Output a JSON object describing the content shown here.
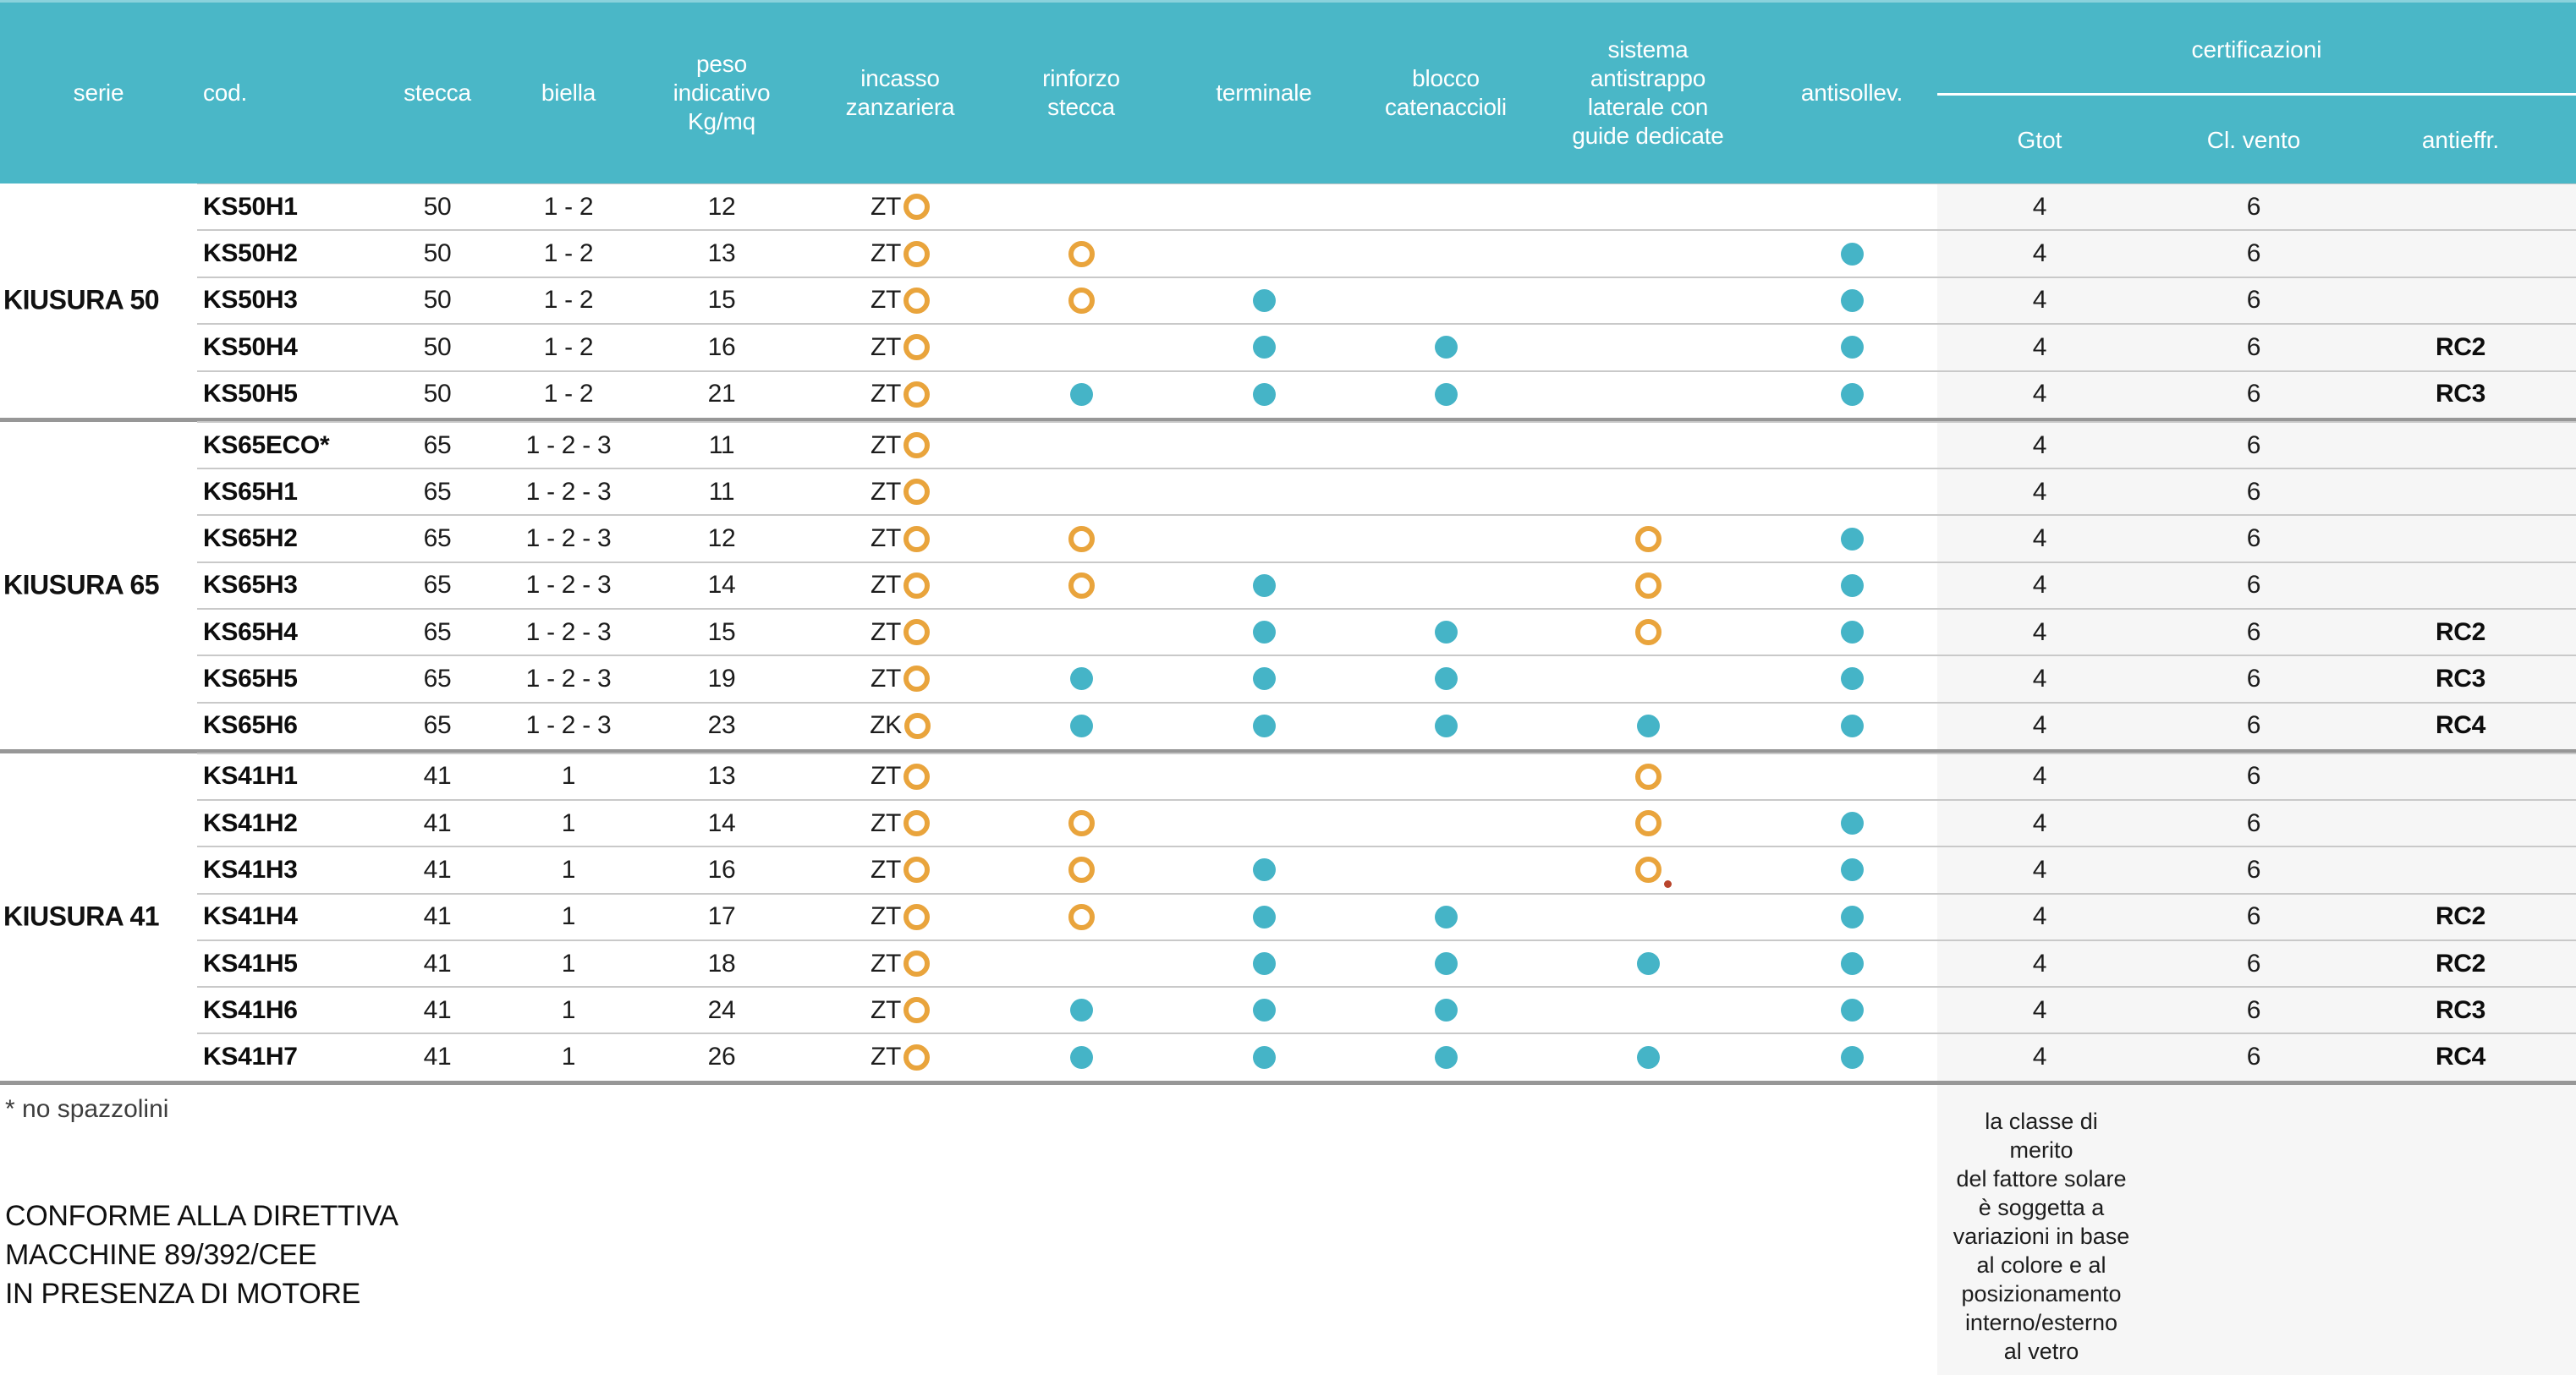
{
  "table": {
    "columns": [
      {
        "label": "serie"
      },
      {
        "label": "cod."
      },
      {
        "label": "stecca"
      },
      {
        "label": "biella"
      },
      {
        "label": "peso\nindicativo\nKg/mq"
      },
      {
        "label": "incasso\nzanzariera"
      },
      {
        "label": "rinforzo\nstecca"
      },
      {
        "label": "terminale"
      },
      {
        "label": "blocco\ncatenaccioli"
      },
      {
        "label": "sistema\nantistrappo\nlaterale con\nguide dedicate"
      },
      {
        "label": "antisollev."
      }
    ],
    "cert": {
      "label": "certificazioni",
      "sub": [
        "Gtot",
        "Cl. vento",
        "antieffr."
      ]
    },
    "groups": [
      {
        "serie": "KIUSURA 50",
        "rows": [
          {
            "cod": "KS50H1",
            "stecca": "50",
            "biella": "1 - 2",
            "peso": "12",
            "incasso": "ZT",
            "rinforzo": "",
            "terminale": "",
            "blocco": "",
            "antistrappo": "",
            "antisollev": "",
            "gtot": "4",
            "vento": "6",
            "antieffr": ""
          },
          {
            "cod": "KS50H2",
            "stecca": "50",
            "biella": "1 - 2",
            "peso": "13",
            "incasso": "ZT",
            "rinforzo": "ring",
            "terminale": "",
            "blocco": "",
            "antistrappo": "",
            "antisollev": "dot",
            "gtot": "4",
            "vento": "6",
            "antieffr": ""
          },
          {
            "cod": "KS50H3",
            "stecca": "50",
            "biella": "1 - 2",
            "peso": "15",
            "incasso": "ZT",
            "rinforzo": "ring",
            "terminale": "dot",
            "blocco": "",
            "antistrappo": "",
            "antisollev": "dot",
            "gtot": "4",
            "vento": "6",
            "antieffr": ""
          },
          {
            "cod": "KS50H4",
            "stecca": "50",
            "biella": "1 - 2",
            "peso": "16",
            "incasso": "ZT",
            "rinforzo": "",
            "terminale": "dot",
            "blocco": "dot",
            "antistrappo": "",
            "antisollev": "dot",
            "gtot": "4",
            "vento": "6",
            "antieffr": "RC2"
          },
          {
            "cod": "KS50H5",
            "stecca": "50",
            "biella": "1 - 2",
            "peso": "21",
            "incasso": "ZT",
            "rinforzo": "dot",
            "terminale": "dot",
            "blocco": "dot",
            "antistrappo": "",
            "antisollev": "dot",
            "gtot": "4",
            "vento": "6",
            "antieffr": "RC3"
          }
        ]
      },
      {
        "serie": "KIUSURA 65",
        "rows": [
          {
            "cod": "KS65ECO*",
            "stecca": "65",
            "biella": "1 - 2 - 3",
            "peso": "11",
            "incasso": "ZT",
            "rinforzo": "",
            "terminale": "",
            "blocco": "",
            "antistrappo": "",
            "antisollev": "",
            "gtot": "4",
            "vento": "6",
            "antieffr": ""
          },
          {
            "cod": "KS65H1",
            "stecca": "65",
            "biella": "1 - 2 - 3",
            "peso": "11",
            "incasso": "ZT",
            "rinforzo": "",
            "terminale": "",
            "blocco": "",
            "antistrappo": "",
            "antisollev": "",
            "gtot": "4",
            "vento": "6",
            "antieffr": ""
          },
          {
            "cod": "KS65H2",
            "stecca": "65",
            "biella": "1 - 2 - 3",
            "peso": "12",
            "incasso": "ZT",
            "rinforzo": "ring",
            "terminale": "",
            "blocco": "",
            "antistrappo": "ring",
            "antisollev": "dot",
            "gtot": "4",
            "vento": "6",
            "antieffr": ""
          },
          {
            "cod": "KS65H3",
            "stecca": "65",
            "biella": "1 - 2 - 3",
            "peso": "14",
            "incasso": "ZT",
            "rinforzo": "ring",
            "terminale": "dot",
            "blocco": "",
            "antistrappo": "ring",
            "antisollev": "dot",
            "gtot": "4",
            "vento": "6",
            "antieffr": ""
          },
          {
            "cod": "KS65H4",
            "stecca": "65",
            "biella": "1 - 2 - 3",
            "peso": "15",
            "incasso": "ZT",
            "rinforzo": "",
            "terminale": "dot",
            "blocco": "dot",
            "antistrappo": "ring",
            "antisollev": "dot",
            "gtot": "4",
            "vento": "6",
            "antieffr": "RC2"
          },
          {
            "cod": "KS65H5",
            "stecca": "65",
            "biella": "1 - 2 - 3",
            "peso": "19",
            "incasso": "ZT",
            "rinforzo": "dot",
            "terminale": "dot",
            "blocco": "dot",
            "antistrappo": "",
            "antisollev": "dot",
            "gtot": "4",
            "vento": "6",
            "antieffr": "RC3"
          },
          {
            "cod": "KS65H6",
            "stecca": "65",
            "biella": "1 - 2 - 3",
            "peso": "23",
            "incasso": "ZK",
            "rinforzo": "dot",
            "terminale": "dot",
            "blocco": "dot",
            "antistrappo": "dot",
            "antisollev": "dot",
            "gtot": "4",
            "vento": "6",
            "antieffr": "RC4"
          }
        ]
      },
      {
        "serie": "KIUSURA 41",
        "rows": [
          {
            "cod": "KS41H1",
            "stecca": "41",
            "biella": "1",
            "peso": "13",
            "incasso": "ZT",
            "rinforzo": "",
            "terminale": "",
            "blocco": "",
            "antistrappo": "ring",
            "antisollev": "",
            "gtot": "4",
            "vento": "6",
            "antieffr": ""
          },
          {
            "cod": "KS41H2",
            "stecca": "41",
            "biella": "1",
            "peso": "14",
            "incasso": "ZT",
            "rinforzo": "ring",
            "terminale": "",
            "blocco": "",
            "antistrappo": "ring",
            "antisollev": "dot",
            "gtot": "4",
            "vento": "6",
            "antieffr": ""
          },
          {
            "cod": "KS41H3",
            "stecca": "41",
            "biella": "1",
            "peso": "16",
            "incasso": "ZT",
            "rinforzo": "ring",
            "terminale": "dot",
            "blocco": "",
            "antistrappo": "ring-dot",
            "antisollev": "dot",
            "gtot": "4",
            "vento": "6",
            "antieffr": ""
          },
          {
            "cod": "KS41H4",
            "stecca": "41",
            "biella": "1",
            "peso": "17",
            "incasso": "ZT",
            "rinforzo": "ring",
            "terminale": "dot",
            "blocco": "dot",
            "antistrappo": "",
            "antisollev": "dot",
            "gtot": "4",
            "vento": "6",
            "antieffr": "RC2"
          },
          {
            "cod": "KS41H5",
            "stecca": "41",
            "biella": "1",
            "peso": "18",
            "incasso": "ZT",
            "rinforzo": "",
            "terminale": "dot",
            "blocco": "dot",
            "antistrappo": "dot",
            "antisollev": "dot",
            "gtot": "4",
            "vento": "6",
            "antieffr": "RC2"
          },
          {
            "cod": "KS41H6",
            "stecca": "41",
            "biella": "1",
            "peso": "24",
            "incasso": "ZT",
            "rinforzo": "dot",
            "terminale": "dot",
            "blocco": "dot",
            "antistrappo": "",
            "antisollev": "dot",
            "gtot": "4",
            "vento": "6",
            "antieffr": "RC3"
          },
          {
            "cod": "KS41H7",
            "stecca": "41",
            "biella": "1",
            "peso": "26",
            "incasso": "ZT",
            "rinforzo": "dot",
            "terminale": "dot",
            "blocco": "dot",
            "antistrappo": "dot",
            "antisollev": "dot",
            "gtot": "4",
            "vento": "6",
            "antieffr": "RC4"
          }
        ]
      }
    ]
  },
  "notes": {
    "asterisk": "* no spazzolini",
    "directive": "CONFORME ALLA DIRETTIVA\nMACCHINE 89/392/CEE\nIN PRESENZA DI MOTORE",
    "solar": "la classe di\nmerito\ndel fattore solare\nè soggetta a\nvariazioni in base\nal colore e al\nposizionamento\ninterno/esterno\nal vetro"
  },
  "colors": {
    "header_teal": "#4ab7c7",
    "marker_dot_teal": "#45b4c7",
    "marker_ring_orange": "#e9a43c",
    "red_artifact": "#b9452c",
    "cert_band_gray": "#f6f6f6",
    "row_separator": "#c9c9c9",
    "group_separator": "#979797"
  }
}
